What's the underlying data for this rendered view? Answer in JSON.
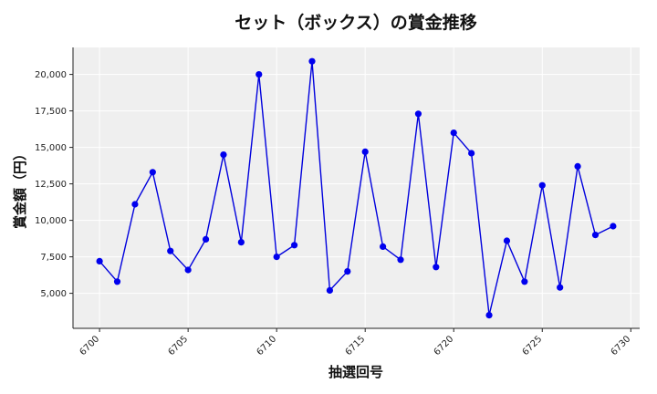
{
  "chart_data": {
    "type": "line",
    "title": "セット（ボックス）の賞金推移",
    "xlabel": "抽選回号",
    "ylabel": "賞金額（円）",
    "x": [
      6700,
      6701,
      6702,
      6703,
      6704,
      6705,
      6706,
      6707,
      6708,
      6709,
      6710,
      6711,
      6712,
      6713,
      6714,
      6715,
      6716,
      6717,
      6718,
      6719,
      6720,
      6721,
      6722,
      6723,
      6724,
      6725,
      6726,
      6727,
      6728,
      6729
    ],
    "series": [
      {
        "values": [
          7200,
          5800,
          11100,
          13300,
          7900,
          6600,
          8700,
          14500,
          8500,
          20000,
          7500,
          8300,
          20900,
          5200,
          6500,
          14700,
          8200,
          7300,
          17300,
          6800,
          16000,
          14600,
          3500,
          8600,
          5800,
          12400,
          5400,
          13700,
          9000,
          9600
        ]
      }
    ],
    "xlim": [
      6698.5,
      6730.5
    ],
    "ylim": [
      2600,
      21850
    ],
    "xticks": [
      6700,
      6705,
      6710,
      6715,
      6720,
      6725,
      6730
    ],
    "yticks": [
      5000,
      7500,
      10000,
      12500,
      15000,
      17500,
      20000
    ],
    "ytick_labels": [
      "5,000",
      "7,500",
      "10,000",
      "12,500",
      "15,000",
      "17,500",
      "20,000"
    ],
    "grid": true,
    "colors": {
      "line": "#0000dd",
      "marker": "#0000ee",
      "plot_bg": "#efefef",
      "grid": "#ffffff"
    }
  }
}
